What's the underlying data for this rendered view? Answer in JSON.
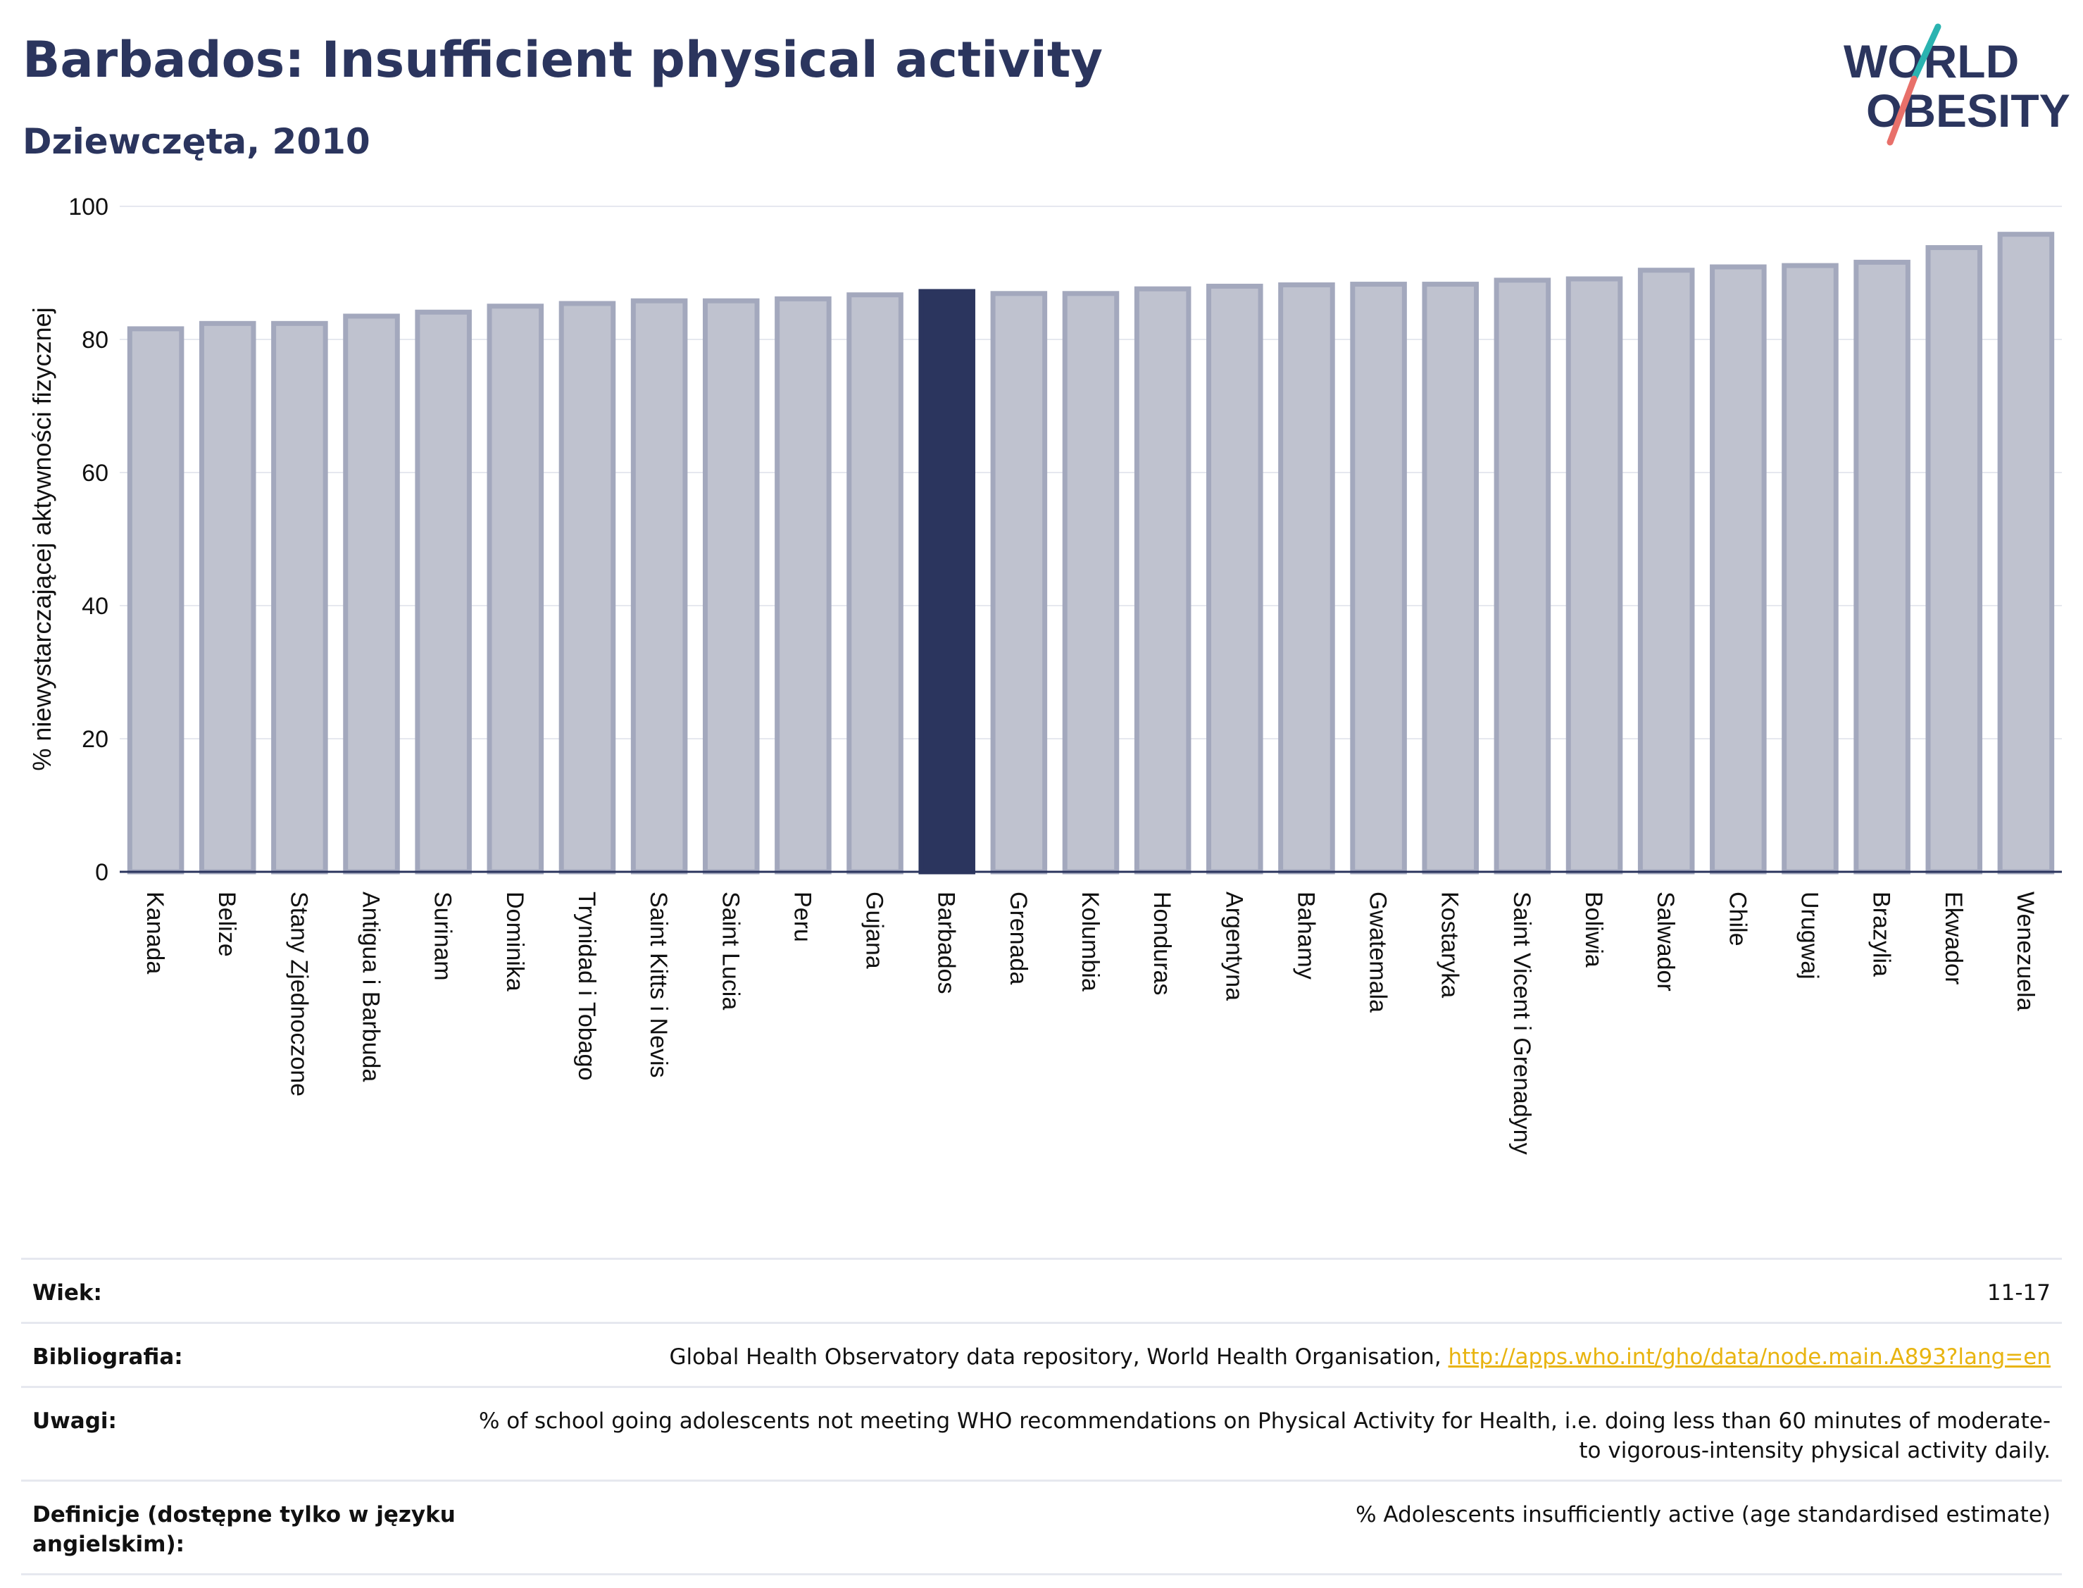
{
  "header": {
    "title": "Barbados: Insufficient physical activity",
    "subtitle": "Dziewczęta, 2010"
  },
  "logo": {
    "line1": "WORLD",
    "line2": "OBESITY"
  },
  "colors": {
    "highlight": "#2b355e",
    "bar": "#bfc2cf",
    "bar_border": "#a3a8bd",
    "accent_teal": "#2ab3b0",
    "accent_red": "#e8706a"
  },
  "chart_data": {
    "type": "bar",
    "ylabel": "% niewystarczającej aktywności fizycznej",
    "ylim": [
      0,
      100
    ],
    "yticks": [
      0,
      20,
      40,
      60,
      80,
      100
    ],
    "grid": true,
    "highlight": "Barbados",
    "categories": [
      "Kanada",
      "Belize",
      "Stany Zjednoczone",
      "Antigua i Barbuda",
      "Surinam",
      "Dominika",
      "Trynidad i Tobago",
      "Saint Kitts i Nevis",
      "Saint Lucia",
      "Peru",
      "Gujana",
      "Barbados",
      "Grenada",
      "Kolumbia",
      "Honduras",
      "Argentyna",
      "Bahamy",
      "Gwatemala",
      "Kostaryka",
      "Saint Vicent i Grenadyny",
      "Boliwia",
      "Salwador",
      "Chile",
      "Urugwaj",
      "Brazylia",
      "Ekwador",
      "Wenezuela"
    ],
    "values": [
      81.6,
      82.4,
      82.4,
      83.5,
      84.1,
      85.0,
      85.4,
      85.8,
      85.8,
      86.1,
      86.7,
      87.2,
      86.9,
      86.9,
      87.6,
      88.0,
      88.2,
      88.3,
      88.3,
      88.9,
      89.1,
      90.4,
      90.9,
      91.1,
      91.6,
      93.8,
      95.8
    ]
  },
  "info": {
    "age_label": "Wiek:",
    "age_value": "11-17",
    "biblio_label": "Bibliografia:",
    "biblio_text": "Global Health Observatory data repository, World Health Organisation, ",
    "biblio_link": "http://apps.who.int/gho/data/node.main.A893?lang=en",
    "notes_label": "Uwagi:",
    "notes_value": "% of school going adolescents not meeting WHO recommendations on Physical Activity for Health, i.e. doing less than 60 minutes of moderate- to vigorous-intensity physical activity daily.",
    "def_label": "Definicje (dostępne tylko w języku angielskim):",
    "def_value": "% Adolescents insufficiently active (age standardised estimate)"
  }
}
